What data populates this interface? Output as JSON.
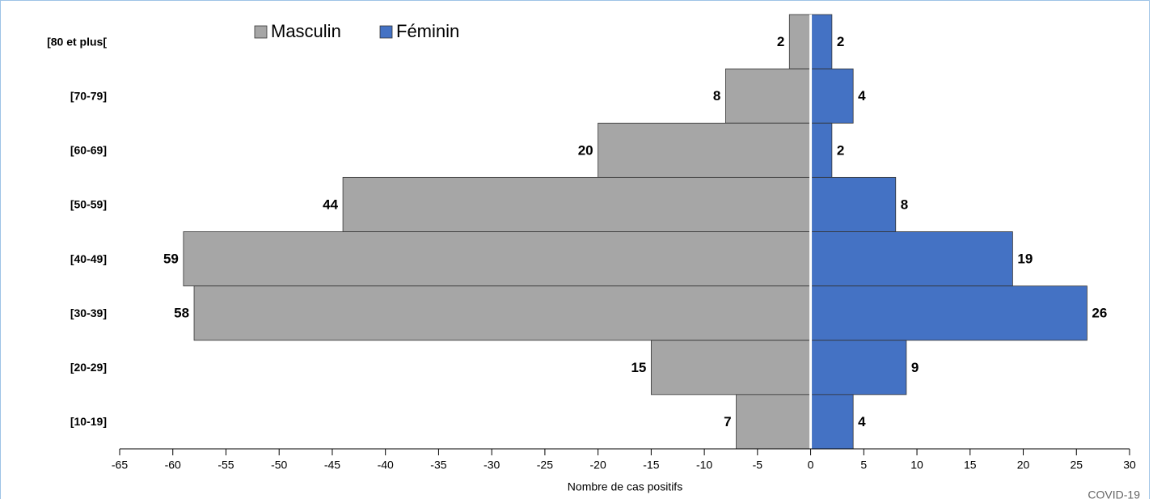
{
  "chart_data": {
    "type": "bar",
    "categories": [
      "[80 et plus[",
      "[70-79]",
      "[60-69]",
      "[50-59]",
      "[40-49]",
      "[30-39]",
      "[20-29]",
      "[10-19]"
    ],
    "series": [
      {
        "name": "Masculin",
        "color": "#a6a6a6",
        "values": [
          -2,
          -8,
          -20,
          -44,
          -59,
          -58,
          -15,
          -7
        ],
        "value_labels": [
          "2",
          "8",
          "20",
          "44",
          "59",
          "58",
          "15",
          "7"
        ]
      },
      {
        "name": "Féminin",
        "color": "#4472c4",
        "values": [
          2,
          4,
          2,
          8,
          19,
          26,
          9,
          4
        ]
      }
    ],
    "x_label": "Nombre de cas positifs",
    "annotation": "COVID-19",
    "xlim": [
      -65,
      30
    ],
    "xticks": [
      -65,
      -60,
      -55,
      -50,
      -45,
      -40,
      -35,
      -30,
      -25,
      -20,
      -15,
      -10,
      -5,
      0,
      5,
      10,
      15,
      20,
      25,
      30
    ],
    "legend": "top"
  }
}
